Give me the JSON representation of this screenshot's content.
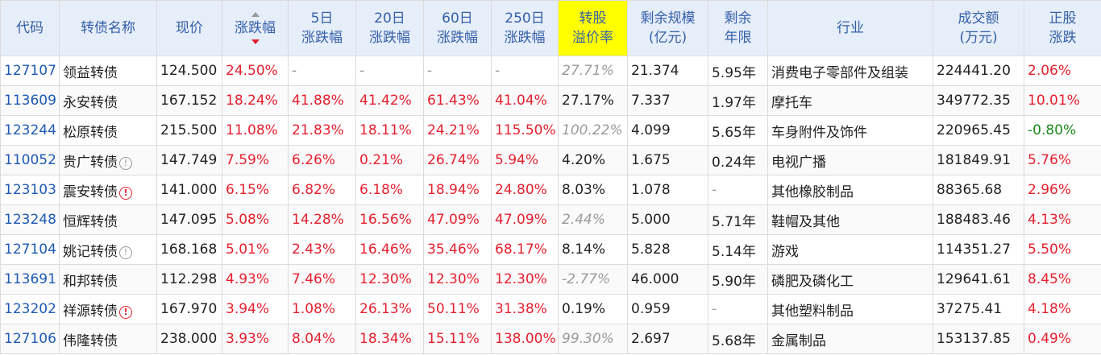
{
  "headers": {
    "code": "代码",
    "name": "转债名称",
    "price": "现价",
    "change": "涨跌幅",
    "d5_l1": "5日",
    "d5_l2": "涨跌幅",
    "d20_l1": "20日",
    "d20_l2": "涨跌幅",
    "d60_l1": "60日",
    "d60_l2": "涨跌幅",
    "d250_l1": "250日",
    "d250_l2": "涨跌幅",
    "premium_l1": "转股",
    "premium_l2": "溢价率",
    "remaining_l1": "剩余规模",
    "remaining_l2": "(亿元)",
    "years_l1": "剩余",
    "years_l2": "年限",
    "industry": "行业",
    "turnover_l1": "成交额",
    "turnover_l2": "(万元)",
    "stock_l1": "正股",
    "stock_l2": "涨跌"
  },
  "colors": {
    "header_bg": "#e6eefa",
    "highlight": "#ffff00",
    "up": "#e5202e",
    "down": "#1a8a1a",
    "code": "#1e5ab4"
  },
  "rows": [
    {
      "code": "127107",
      "name": "领益转债",
      "warn": "",
      "price": "124.500",
      "change": "24.50%",
      "d5": "-",
      "d20": "-",
      "d60": "-",
      "d250": "-",
      "premium": "27.71%",
      "premium_style": "gray-italic",
      "remaining": "21.374",
      "years": "5.95年",
      "industry": "消费电子零部件及组装",
      "turnover": "224441.20",
      "stock": "2.06%",
      "stock_style": "red"
    },
    {
      "code": "113609",
      "name": "永安转债",
      "warn": "",
      "price": "167.152",
      "change": "18.24%",
      "d5": "41.88%",
      "d20": "41.42%",
      "d60": "61.43%",
      "d250": "41.04%",
      "premium": "27.17%",
      "premium_style": "",
      "remaining": "7.337",
      "years": "1.97年",
      "industry": "摩托车",
      "turnover": "349772.35",
      "stock": "10.01%",
      "stock_style": "red"
    },
    {
      "code": "123244",
      "name": "松原转债",
      "warn": "",
      "price": "215.500",
      "change": "11.08%",
      "d5": "21.83%",
      "d20": "18.11%",
      "d60": "24.21%",
      "d250": "115.50%",
      "premium": "100.22%",
      "premium_style": "gray-italic",
      "remaining": "4.099",
      "years": "5.65年",
      "industry": "车身附件及饰件",
      "turnover": "220965.45",
      "stock": "-0.80%",
      "stock_style": "green"
    },
    {
      "code": "110052",
      "name": "贵广转债",
      "warn": "gray",
      "price": "147.749",
      "change": "7.59%",
      "d5": "6.26%",
      "d20": "0.21%",
      "d60": "26.74%",
      "d250": "5.94%",
      "premium": "4.20%",
      "premium_style": "",
      "remaining": "1.675",
      "years": "0.24年",
      "industry": "电视广播",
      "turnover": "181849.91",
      "stock": "5.76%",
      "stock_style": "red"
    },
    {
      "code": "123103",
      "name": "震安转债",
      "warn": "red",
      "price": "141.000",
      "change": "6.15%",
      "d5": "6.82%",
      "d20": "6.18%",
      "d60": "18.94%",
      "d250": "24.80%",
      "premium": "8.03%",
      "premium_style": "",
      "remaining": "1.078",
      "years": "-",
      "industry": "其他橡胶制品",
      "turnover": "88365.68",
      "stock": "2.96%",
      "stock_style": "red"
    },
    {
      "code": "123248",
      "name": "恒辉转债",
      "warn": "",
      "price": "147.095",
      "change": "5.08%",
      "d5": "14.28%",
      "d20": "16.56%",
      "d60": "47.09%",
      "d250": "47.09%",
      "premium": "2.44%",
      "premium_style": "gray-italic",
      "remaining": "5.000",
      "years": "5.71年",
      "industry": "鞋帽及其他",
      "turnover": "188483.46",
      "stock": "4.13%",
      "stock_style": "red"
    },
    {
      "code": "127104",
      "name": "姚记转债",
      "warn": "gray",
      "price": "168.168",
      "change": "5.01%",
      "d5": "2.43%",
      "d20": "16.46%",
      "d60": "35.46%",
      "d250": "68.17%",
      "premium": "8.14%",
      "premium_style": "",
      "remaining": "5.828",
      "years": "5.14年",
      "industry": "游戏",
      "turnover": "114351.27",
      "stock": "5.50%",
      "stock_style": "red"
    },
    {
      "code": "113691",
      "name": "和邦转债",
      "warn": "",
      "price": "112.298",
      "change": "4.93%",
      "d5": "7.46%",
      "d20": "12.30%",
      "d60": "12.30%",
      "d250": "12.30%",
      "premium": "-2.77%",
      "premium_style": "gray-italic",
      "remaining": "46.000",
      "years": "5.90年",
      "industry": "磷肥及磷化工",
      "turnover": "129641.61",
      "stock": "8.45%",
      "stock_style": "red"
    },
    {
      "code": "123202",
      "name": "祥源转债",
      "warn": "red",
      "price": "167.970",
      "change": "3.94%",
      "d5": "1.08%",
      "d20": "26.13%",
      "d60": "50.11%",
      "d250": "31.38%",
      "premium": "0.19%",
      "premium_style": "",
      "remaining": "0.959",
      "years": "-",
      "industry": "其他塑料制品",
      "turnover": "37275.41",
      "stock": "4.18%",
      "stock_style": "red"
    },
    {
      "code": "127106",
      "name": "伟隆转债",
      "warn": "",
      "price": "238.000",
      "change": "3.93%",
      "d5": "8.04%",
      "d20": "18.34%",
      "d60": "15.11%",
      "d250": "138.00%",
      "premium": "99.30%",
      "premium_style": "gray-italic",
      "remaining": "2.697",
      "years": "5.68年",
      "industry": "金属制品",
      "turnover": "153137.85",
      "stock": "0.49%",
      "stock_style": "red"
    }
  ]
}
